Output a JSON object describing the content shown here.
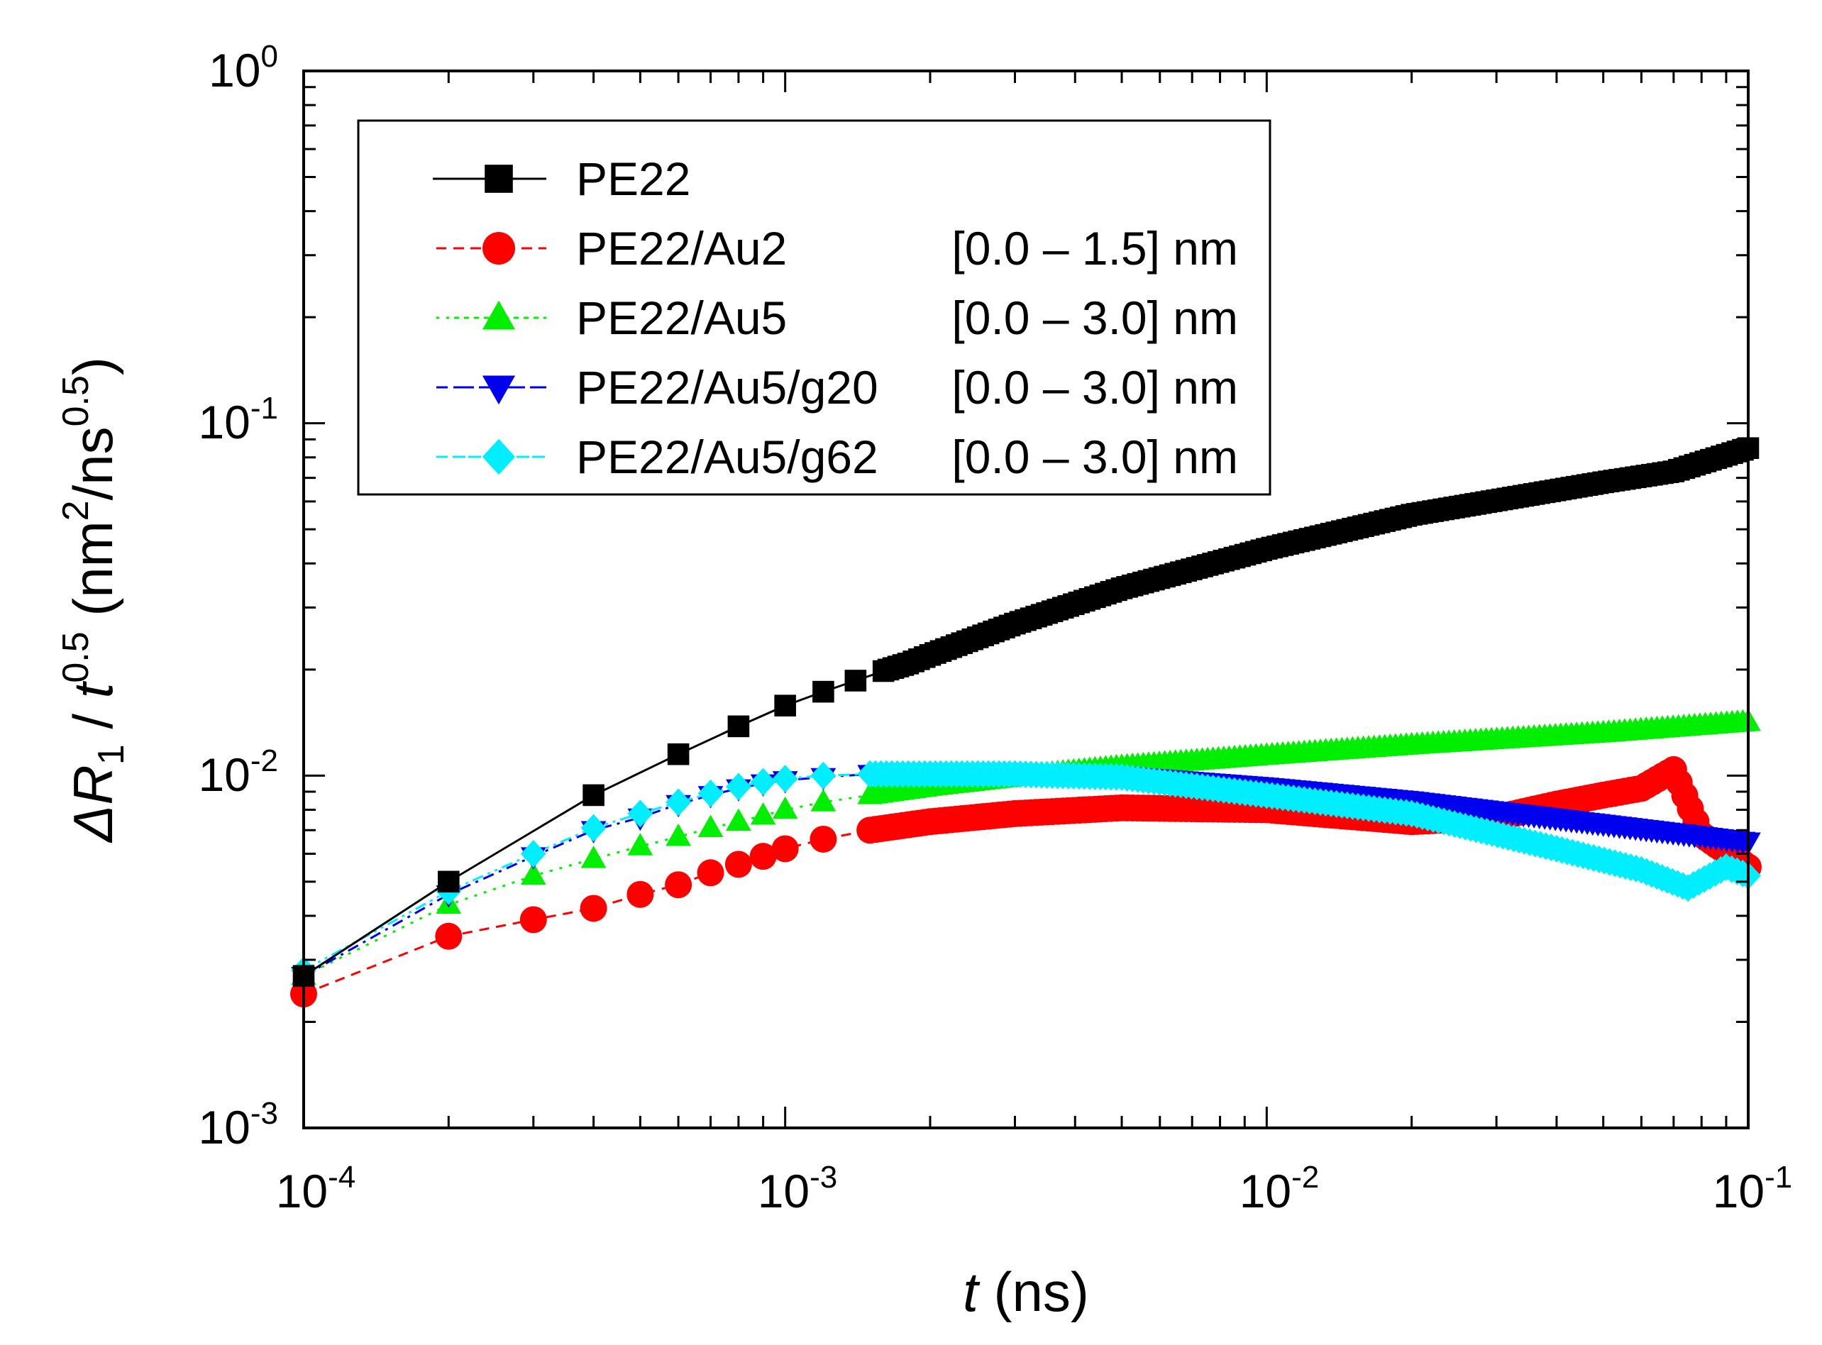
{
  "chart_data": {
    "type": "scatter",
    "title": "",
    "x_axis": {
      "title_var": "t",
      "title_unit": " (ns)",
      "scale": "log",
      "range": [
        0.0001,
        0.1
      ],
      "tick_labels": [
        {
          "base": "10",
          "exp": "-4"
        },
        {
          "base": "10",
          "exp": "-3"
        },
        {
          "base": "10",
          "exp": "-2"
        },
        {
          "base": "10",
          "exp": "-1"
        }
      ]
    },
    "y_axis": {
      "title_delta": "Δ",
      "title_var": "R",
      "title_sub": "1",
      "title_sep": " / ",
      "title_t": "t",
      "title_t_exp": "0.5",
      "title_unit_open": " (nm",
      "title_unit_exp1": "2",
      "title_unit_mid": "/ns",
      "title_unit_exp2": "0.5",
      "title_unit_close": ")",
      "scale": "log",
      "range": [
        0.001,
        1
      ],
      "tick_labels": [
        {
          "base": "10",
          "exp": "-3"
        },
        {
          "base": "10",
          "exp": "-2"
        },
        {
          "base": "10",
          "exp": "-1"
        },
        {
          "base": "10",
          "exp": "0"
        }
      ]
    },
    "legend_position": "top-left",
    "series": [
      {
        "name": "PE22",
        "range_label": "",
        "color": "#000000",
        "marker": "square",
        "line": "solid",
        "x": [
          0.0001,
          0.0002,
          0.0004,
          0.0006,
          0.0008,
          0.001,
          0.0012,
          0.0014,
          0.0016,
          0.0018,
          0.002,
          0.003,
          0.005,
          0.01,
          0.02,
          0.05,
          0.07,
          0.1
        ],
        "y": [
          0.0027,
          0.005,
          0.0088,
          0.0115,
          0.0138,
          0.0158,
          0.0173,
          0.0186,
          0.0198,
          0.0208,
          0.022,
          0.027,
          0.034,
          0.044,
          0.055,
          0.068,
          0.073,
          0.085
        ]
      },
      {
        "name": "PE22/Au2",
        "range_label": "[0.0 – 1.5] nm",
        "color": "#ff0000",
        "marker": "circle",
        "line": "dashed",
        "x": [
          0.0001,
          0.0002,
          0.0003,
          0.0004,
          0.0005,
          0.0006,
          0.0007,
          0.0008,
          0.0009,
          0.001,
          0.0012,
          0.0015,
          0.002,
          0.003,
          0.005,
          0.01,
          0.02,
          0.03,
          0.04,
          0.05,
          0.06,
          0.07,
          0.08,
          0.1
        ],
        "y": [
          0.0024,
          0.0035,
          0.0039,
          0.0042,
          0.0046,
          0.0049,
          0.0053,
          0.0056,
          0.0059,
          0.0062,
          0.0066,
          0.007,
          0.0074,
          0.0078,
          0.0081,
          0.008,
          0.0074,
          0.0076,
          0.0083,
          0.0088,
          0.0092,
          0.0104,
          0.0068,
          0.0055
        ]
      },
      {
        "name": "PE22/Au5",
        "range_label": "[0.0 – 3.0] nm",
        "color": "#00ee00",
        "marker": "triangle-up",
        "line": "dotted",
        "x": [
          0.0001,
          0.0002,
          0.0003,
          0.0004,
          0.0005,
          0.0006,
          0.0007,
          0.0008,
          0.0009,
          0.001,
          0.0012,
          0.0015,
          0.002,
          0.003,
          0.005,
          0.01,
          0.02,
          0.05,
          0.1
        ],
        "y": [
          0.0027,
          0.0043,
          0.0052,
          0.0058,
          0.0063,
          0.0067,
          0.0071,
          0.0074,
          0.0077,
          0.008,
          0.0084,
          0.0088,
          0.0093,
          0.0099,
          0.0106,
          0.0114,
          0.0122,
          0.0132,
          0.0142
        ]
      },
      {
        "name": "PE22/Au5/g20",
        "range_label": "[0.0 – 3.0] nm",
        "color": "#0000ee",
        "marker": "triangle-down",
        "line": "dash-dot",
        "x": [
          0.0001,
          0.0002,
          0.0003,
          0.0004,
          0.0005,
          0.0006,
          0.0007,
          0.0008,
          0.0009,
          0.001,
          0.0012,
          0.0015,
          0.002,
          0.003,
          0.005,
          0.01,
          0.02,
          0.05,
          0.1
        ],
        "y": [
          0.0027,
          0.0046,
          0.0059,
          0.007,
          0.0076,
          0.0083,
          0.0088,
          0.0092,
          0.0095,
          0.0097,
          0.0099,
          0.0101,
          0.0102,
          0.0102,
          0.01,
          0.0093,
          0.0085,
          0.0073,
          0.0065
        ]
      },
      {
        "name": "PE22/Au5/g62",
        "range_label": "[0.0 – 3.0] nm",
        "color": "#00eeff",
        "marker": "diamond",
        "line": "dash-dot-dot",
        "x": [
          0.0001,
          0.0002,
          0.0003,
          0.0004,
          0.0005,
          0.0006,
          0.0007,
          0.0008,
          0.0009,
          0.001,
          0.0012,
          0.0015,
          0.002,
          0.003,
          0.005,
          0.01,
          0.02,
          0.04,
          0.06,
          0.075,
          0.09,
          0.1
        ],
        "y": [
          0.0028,
          0.0047,
          0.006,
          0.0071,
          0.0078,
          0.0084,
          0.0089,
          0.0093,
          0.0096,
          0.0098,
          0.01,
          0.0101,
          0.0101,
          0.0101,
          0.0099,
          0.0088,
          0.0078,
          0.0062,
          0.0054,
          0.0048,
          0.0055,
          0.0052
        ]
      }
    ]
  }
}
